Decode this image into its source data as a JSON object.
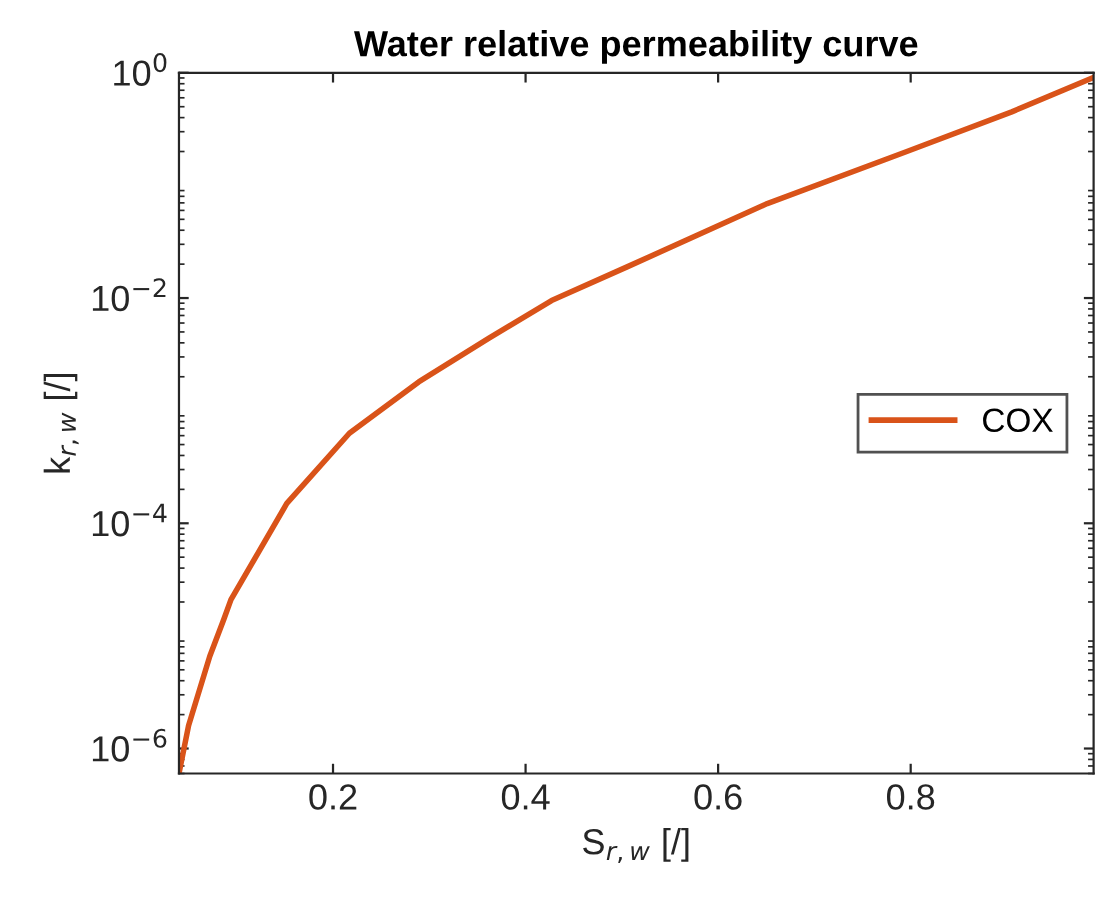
{
  "chart_data": {
    "type": "line",
    "title": "Water relative permeability curve",
    "xlabel": "S$_{r,w}$ [/]",
    "ylabel": "k$_{r,w}$ [/]",
    "log": "y",
    "xlim": [
      0.04,
      0.99
    ],
    "ylim": [
      6e-07,
      1
    ],
    "xticks": [
      0.2,
      0.4,
      0.6,
      0.8
    ],
    "yticks": [
      {
        "value": 1e-06,
        "label": "10$^{−6}$"
      },
      {
        "value": 0.0001,
        "label": "10$^{−4}$"
      },
      {
        "value": 0.01,
        "label": "10$^{−2}$"
      },
      {
        "value": 1,
        "label": "10$^{0}$"
      }
    ],
    "grid": false,
    "legend": "right",
    "line_style": "solid",
    "marker": "none",
    "series": [
      {
        "name": "COX",
        "color": "#d95319",
        "x": [
          0.04,
          0.05,
          0.072,
          0.0865,
          0.094,
          0.152,
          0.217,
          0.289,
          0.362,
          0.427,
          0.506,
          0.651,
          0.796,
          0.905,
          0.99
        ],
        "values": [
          6e-07,
          1.6e-06,
          6.6e-06,
          1.4e-05,
          2.1e-05,
          0.00015,
          0.00063,
          0.0018,
          0.0044,
          0.0095,
          0.019,
          0.069,
          0.2,
          0.45,
          0.91
        ]
      }
    ]
  }
}
